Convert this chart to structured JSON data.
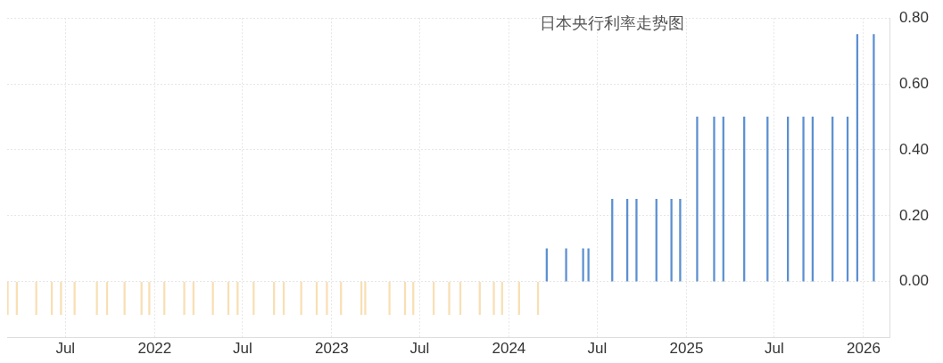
{
  "chart_data": {
    "type": "bar",
    "title": "日本央行利率走势图",
    "x": [
      "2021-03-04",
      "2021-03-23",
      "2021-05-02",
      "2021-06-03",
      "2021-06-22",
      "2021-07-20",
      "2021-09-04",
      "2021-09-25",
      "2021-10-31",
      "2021-12-05",
      "2021-12-21",
      "2022-01-21",
      "2022-03-03",
      "2022-03-22",
      "2022-05-01",
      "2022-06-02",
      "2022-06-21",
      "2022-07-24",
      "2022-09-04",
      "2022-09-24",
      "2022-10-30",
      "2022-12-01",
      "2022-12-22",
      "2023-01-20",
      "2023-03-03",
      "2023-03-11",
      "2023-04-30",
      "2023-06-01",
      "2023-06-18",
      "2023-07-30",
      "2023-08-31",
      "2023-09-23",
      "2023-11-02",
      "2023-12-01",
      "2023-12-18",
      "2024-01-22",
      "2024-03-01",
      "2024-03-19",
      "2024-04-28",
      "2024-06-02",
      "2024-06-13",
      "2024-08-01",
      "2024-09-01",
      "2024-09-20",
      "2024-10-31",
      "2024-12-01",
      "2024-12-19",
      "2025-01-23",
      "2025-02-27",
      "2025-03-18",
      "2025-04-30",
      "2025-06-17",
      "2025-07-29",
      "2025-08-30",
      "2025-09-18",
      "2025-10-29",
      "2025-11-29",
      "2025-12-19",
      "2026-01-22"
    ],
    "values": [
      -0.1,
      -0.1,
      -0.1,
      -0.1,
      -0.1,
      -0.1,
      -0.1,
      -0.1,
      -0.1,
      -0.1,
      -0.1,
      -0.1,
      -0.1,
      -0.1,
      -0.1,
      -0.1,
      -0.1,
      -0.1,
      -0.1,
      -0.1,
      -0.1,
      -0.1,
      -0.1,
      -0.1,
      -0.1,
      -0.1,
      -0.1,
      -0.1,
      -0.1,
      -0.1,
      -0.1,
      -0.1,
      -0.1,
      -0.1,
      -0.1,
      -0.1,
      -0.1,
      0.1,
      0.1,
      0.1,
      0.1,
      0.25,
      0.25,
      0.25,
      0.25,
      0.25,
      0.25,
      0.5,
      0.5,
      0.5,
      0.5,
      0.5,
      0.5,
      0.5,
      0.5,
      0.5,
      0.5,
      0.75,
      0.75
    ],
    "colors": [
      "#f8dfb4",
      "#f8dfb4",
      "#f8dfb4",
      "#f8dfb4",
      "#f8dfb4",
      "#f8dfb4",
      "#f8dfb4",
      "#f8dfb4",
      "#f8dfb4",
      "#f8dfb4",
      "#f8dfb4",
      "#f8dfb4",
      "#f8dfb4",
      "#f8dfb4",
      "#f8dfb4",
      "#f8dfb4",
      "#f8dfb4",
      "#f8dfb4",
      "#f8dfb4",
      "#f8dfb4",
      "#f8dfb4",
      "#f8dfb4",
      "#f8dfb4",
      "#f8dfb4",
      "#f8dfb4",
      "#f8dfb4",
      "#f8dfb4",
      "#f8dfb4",
      "#f8dfb4",
      "#f8dfb4",
      "#f8dfb4",
      "#f8dfb4",
      "#f8dfb4",
      "#f8dfb4",
      "#f8dfb4",
      "#f8dfb4",
      "#f8dfb4",
      "#5b8fd0",
      "#5b8fd0",
      "#5b8fd0",
      "#5b8fd0",
      "#5b8fd0",
      "#5b8fd0",
      "#5b8fd0",
      "#5b8fd0",
      "#5b8fd0",
      "#5b8fd0",
      "#5b8fd0",
      "#5b8fd0",
      "#5b8fd0",
      "#5b8fd0",
      "#5b8fd0",
      "#5b8fd0",
      "#5b8fd0",
      "#5b8fd0",
      "#5b8fd0",
      "#5b8fd0",
      "#5b8fd0",
      "#5b8fd0"
    ],
    "xlim": [
      "2021-03-03",
      "2026-02-25"
    ],
    "xticks": [
      {
        "value": "2021-07",
        "label": "Jul"
      },
      {
        "value": "2022",
        "label": "2022"
      },
      {
        "value": "2022-07",
        "label": "Jul"
      },
      {
        "value": "2023",
        "label": "2023"
      },
      {
        "value": "2023-07",
        "label": "Jul"
      },
      {
        "value": "2024",
        "label": "2024"
      },
      {
        "value": "2024-07",
        "label": "Jul"
      },
      {
        "value": "2025",
        "label": "2025"
      },
      {
        "value": "2025-07",
        "label": "Jul"
      },
      {
        "value": "2026",
        "label": "2026"
      }
    ],
    "ylim": [
      -0.17,
      0.8
    ],
    "yticks": [
      {
        "value": 0,
        "label": "0.00"
      },
      {
        "value": 0.2,
        "label": "0.20"
      },
      {
        "value": 0.4,
        "label": "0.40"
      },
      {
        "value": 0.6,
        "label": "0.60"
      },
      {
        "value": 0.8,
        "label": "0.80"
      }
    ],
    "grid": true,
    "legend": false
  }
}
